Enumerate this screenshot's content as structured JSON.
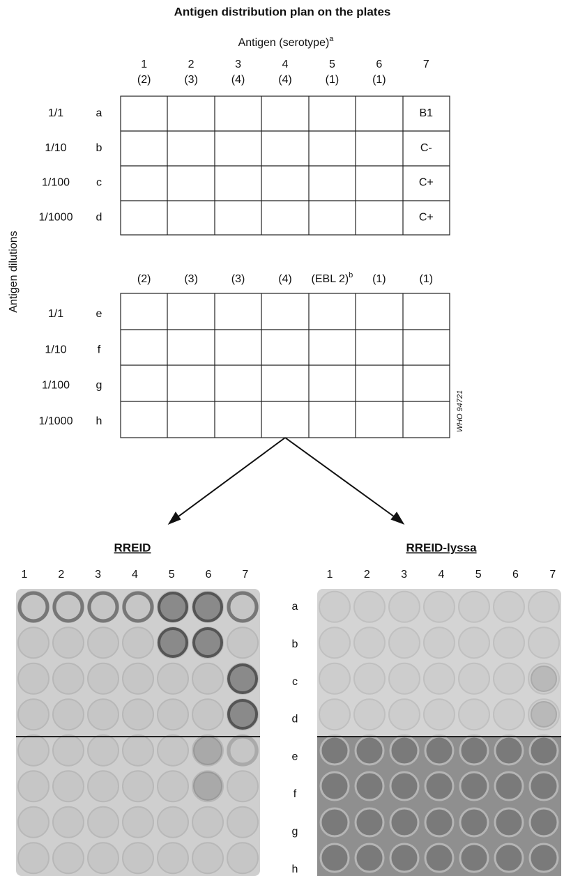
{
  "title": "Antigen distribution plan on the plates",
  "plan": {
    "axis_label": "Antigen (serotype)",
    "axis_label_note": "a",
    "side_label": "Antigen dilutions",
    "grid1": {
      "columns": [
        {
          "number": "1",
          "serotype": "(2)"
        },
        {
          "number": "2",
          "serotype": "(3)"
        },
        {
          "number": "3",
          "serotype": "(4)"
        },
        {
          "number": "4",
          "serotype": "(4)"
        },
        {
          "number": "5",
          "serotype": "(1)"
        },
        {
          "number": "6",
          "serotype": "(1)"
        },
        {
          "number": "7"
        }
      ],
      "rows": [
        {
          "dilution": "1/1",
          "letter": "a",
          "control": "B1"
        },
        {
          "dilution": "1/10",
          "letter": "b",
          "control": "C-"
        },
        {
          "dilution": "1/100",
          "letter": "c",
          "control": "C+"
        },
        {
          "dilution": "1/1000",
          "letter": "d",
          "control": "C+"
        }
      ]
    },
    "grid2": {
      "headers": [
        {
          "text": "(2)"
        },
        {
          "text": "(3)"
        },
        {
          "text": "(3)"
        },
        {
          "text": "(4)"
        },
        {
          "text": "(EBL 2)",
          "note": "b"
        },
        {
          "text": "(1)"
        },
        {
          "text": "(1)"
        }
      ],
      "rows": [
        {
          "dilution": "1/1",
          "letter": "e"
        },
        {
          "dilution": "1/10",
          "letter": "f"
        },
        {
          "dilution": "1/100",
          "letter": "g"
        },
        {
          "dilution": "1/1000",
          "letter": "h"
        }
      ]
    },
    "code": "WHO 94721"
  },
  "plates": {
    "left": {
      "title": "RREID",
      "columns": [
        "1",
        "2",
        "3",
        "4",
        "5",
        "6",
        "7"
      ]
    },
    "right": {
      "title": "RREID-lyssa",
      "columns": [
        "1",
        "2",
        "3",
        "4",
        "5",
        "6",
        "7"
      ]
    },
    "row_letters": [
      "a",
      "b",
      "c",
      "d",
      "e",
      "f",
      "g",
      "h"
    ]
  }
}
